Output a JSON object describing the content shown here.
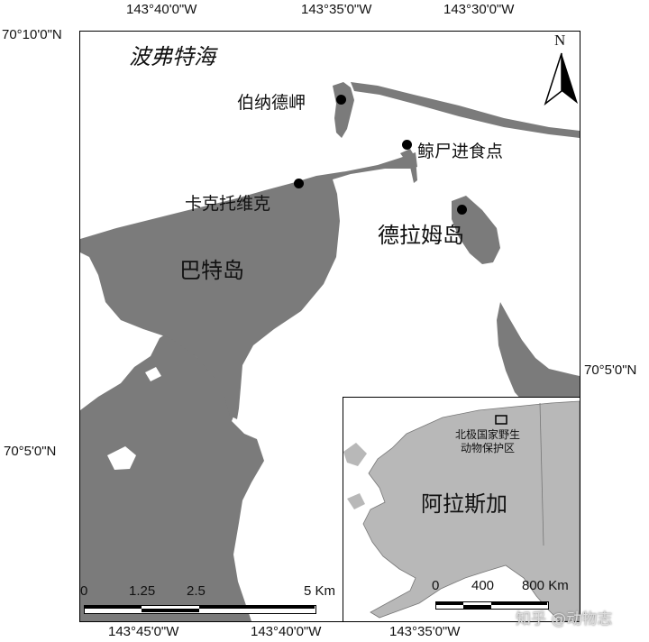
{
  "map": {
    "sea_label": "波弗特海",
    "places": {
      "cape": "伯纳德岬",
      "whale_site": "鲸尸进食点",
      "kaktovik": "卡克托维克",
      "demarcation_island": "德拉姆岛",
      "barter_island": "巴特岛"
    },
    "north_arrow": "N",
    "longitude_top": [
      "143°40'0\"W",
      "143°35'0\"W",
      "143°30'0\"W"
    ],
    "longitude_bottom": [
      "143°45'0\"W",
      "143°40'0\"W",
      "143°35'0\"W"
    ],
    "latitude_left": [
      "70°10'0\"N",
      "70°5'0\"N"
    ],
    "latitude_right": [
      "70°5'0\"N"
    ],
    "scale_labels": [
      "0",
      "1.25",
      "2.5",
      "5 Km"
    ]
  },
  "inset": {
    "region_label": "阿拉斯加",
    "refuge_label_line1": "北极国家野生",
    "refuge_label_line2": "动物保护区",
    "scale_labels": [
      "0",
      "400",
      "800 Km"
    ]
  },
  "watermark": "知乎 @动物志",
  "colors": {
    "land": "#7b7b7b",
    "water": "#ffffff",
    "inset_land": "#b8b8b8"
  }
}
